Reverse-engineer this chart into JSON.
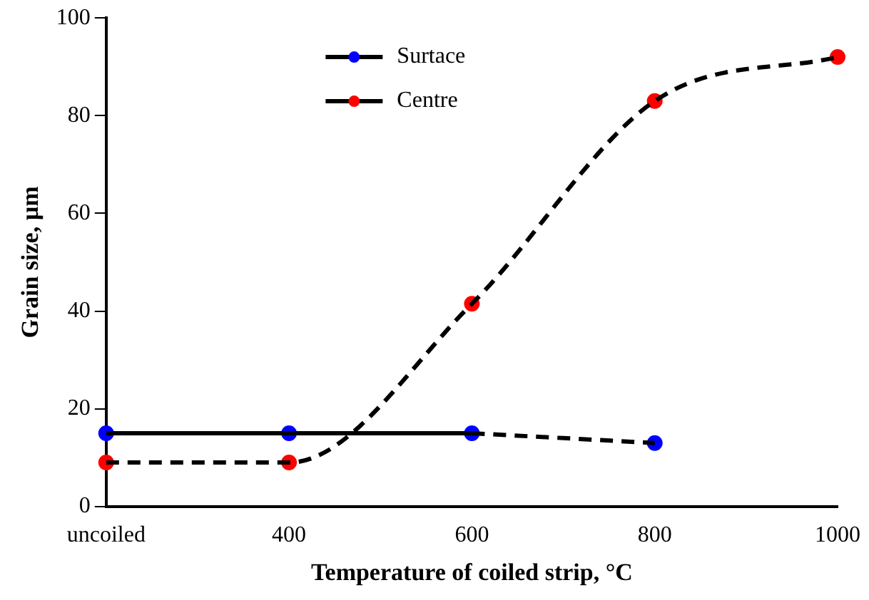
{
  "chart_data": {
    "type": "line",
    "xlabel": "Temperature of coiled strip, °C",
    "ylabel": "Grain size, µm",
    "categories": [
      "uncoiled",
      "400",
      "600",
      "800",
      "1000"
    ],
    "ylim": [
      0,
      100
    ],
    "yticks": [
      0,
      20,
      40,
      60,
      80,
      100
    ],
    "grid": false,
    "legend": "top",
    "series": [
      {
        "color": "#000000",
        "line_style": "solid",
        "values": [
          15,
          15,
          15,
          null,
          null
        ]
      },
      {
        "color": "#000000",
        "line_style": "dashed",
        "values": [
          null,
          null,
          15,
          13,
          null
        ]
      },
      {
        "color": "#000000",
        "line_style": "dashed",
        "values": [
          9,
          9,
          41.5,
          83,
          92
        ]
      },
      {
        "name": "Surtace",
        "color": "#0000ff",
        "type": "scatter",
        "marker": "circle",
        "values": [
          15,
          15,
          15,
          13,
          null
        ]
      },
      {
        "name": "Centre",
        "color": "#ff0000",
        "type": "scatter",
        "marker": "circle",
        "values": [
          9,
          9,
          41.5,
          83,
          92
        ]
      }
    ]
  }
}
